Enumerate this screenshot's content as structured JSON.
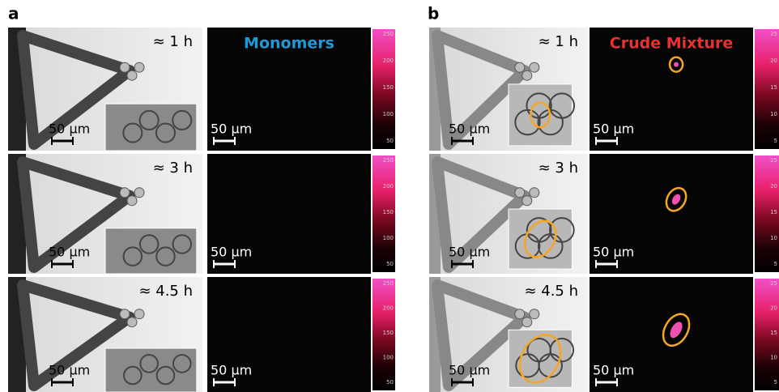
{
  "panels": [
    {
      "label": "a",
      "title": "Monomers",
      "rows": [
        {
          "time": "≈ 1 h",
          "scale_bf": "50 µm",
          "scale_fl": "50 µm"
        },
        {
          "time": "≈ 3 h",
          "scale_bf": "50 µm",
          "scale_fl": "50 µm"
        },
        {
          "time": "≈ 4.5 h",
          "scale_bf": "50 µm",
          "scale_fl": "50 µm"
        }
      ],
      "colorbar_ticks": [
        "250",
        "200",
        "150",
        "100",
        "50"
      ]
    },
    {
      "label": "b",
      "title": "Crude Mixture",
      "rows": [
        {
          "time": "≈ 1 h",
          "scale_bf": "50 µm",
          "scale_fl": "50 µm"
        },
        {
          "time": "≈ 3 h",
          "scale_bf": "50 µm",
          "scale_fl": "50 µm"
        },
        {
          "time": "≈ 4.5 h",
          "scale_bf": "50 µm",
          "scale_fl": "50 µm"
        }
      ],
      "colorbar_ticks": [
        "25",
        "20",
        "15",
        "10",
        "5"
      ]
    }
  ]
}
